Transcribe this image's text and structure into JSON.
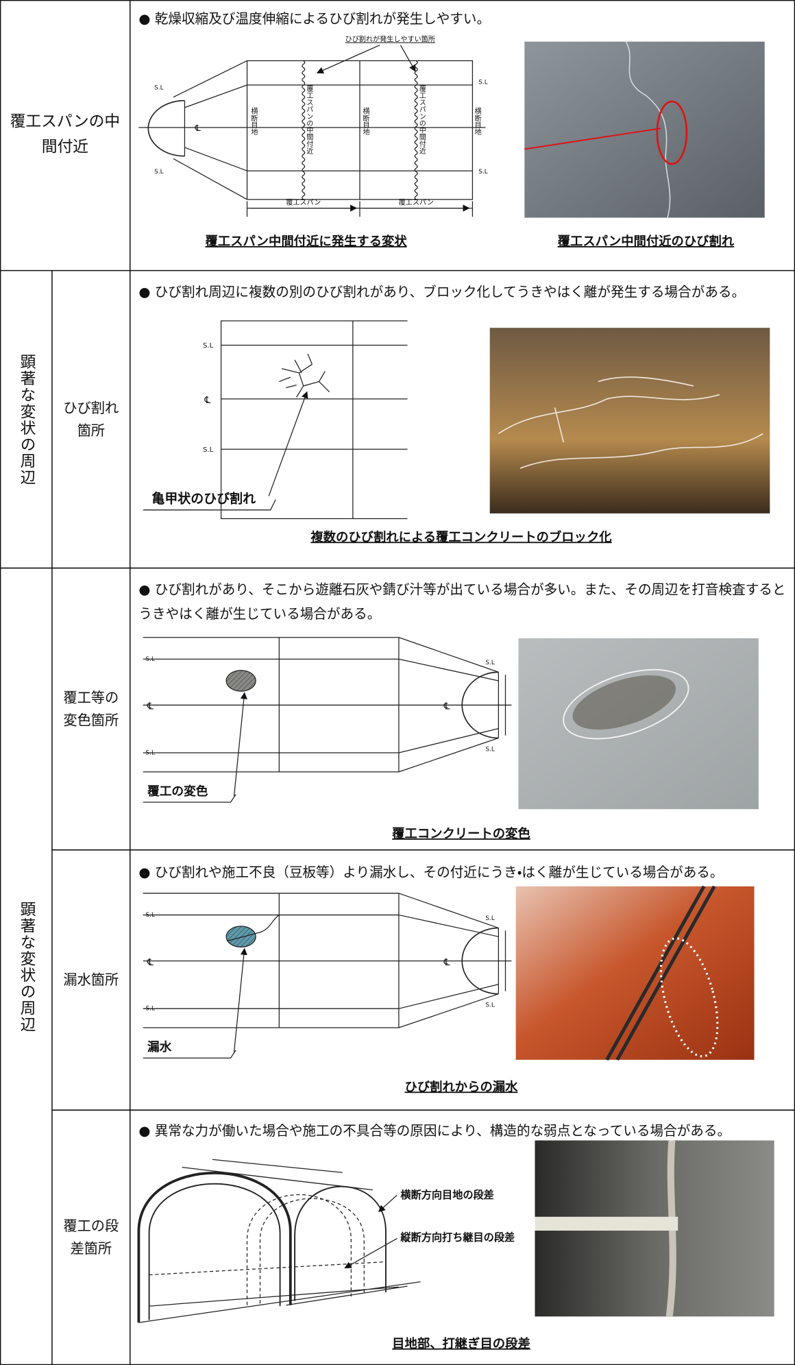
{
  "table": {
    "groups": [
      {
        "label": "顕著な変状の周辺"
      },
      {
        "label": "顕著な変状の周辺"
      }
    ],
    "rows": [
      {
        "category": "覆工スパンの中間付近",
        "note": "● 乾燥収縮及び温度伸縮によるひび割れが発生しやすい。",
        "diagram": {
          "callout": "ひび割れが発生しやすい箇所",
          "spring_line": "S.L",
          "centerline": "℄",
          "joint": "横断目地",
          "mid_span": "覆工スパンの中間付近",
          "span": "覆工スパン",
          "caption": "覆工スパン中間付近に発生する変状"
        },
        "photo": {
          "caption": "覆工スパン中間付近のひび割れ"
        }
      },
      {
        "category": "ひび割れ箇所",
        "note": "● ひび割れ周辺に複数の別のひび割れがあり、ブロック化してうきやはく離が発生する場合がある。",
        "diagram": {
          "spring_line": "S.L",
          "centerline": "℄",
          "label": "亀甲状のひび割れ"
        },
        "caption": "複数のひび割れによる覆工コンクリートのブロック化"
      },
      {
        "category": "覆工等の変色箇所",
        "note": "● ひび割れがあり、そこから遊離石灰や錆び汁等が出ている場合が多い。また、その周辺を打音検査するとうきやはく離が生じている場合がある。",
        "diagram": {
          "spring_line": "S.L",
          "centerline": "℄",
          "label": "覆工の変色"
        },
        "caption": "覆工コンクリートの変色"
      },
      {
        "category": "漏水箇所",
        "note": "● ひび割れや施工不良（豆板等）より漏水し、その付近にうき・はく離が生じている場合がある。",
        "diagram": {
          "spring_line": "S.L",
          "centerline": "℄",
          "label": "漏水"
        },
        "caption": "ひび割れからの漏水"
      },
      {
        "category": "覆工の段差箇所",
        "note": "● 異常な力が働いた場合や施工の不具合等の原因により、構造的な弱点となっている場合がある。",
        "diagram": {
          "transverse": "横断方向目地の段差",
          "longitudinal": "縦断方向打ち継目の段差"
        },
        "caption": "目地部、打継ぎ目の段差"
      }
    ]
  }
}
